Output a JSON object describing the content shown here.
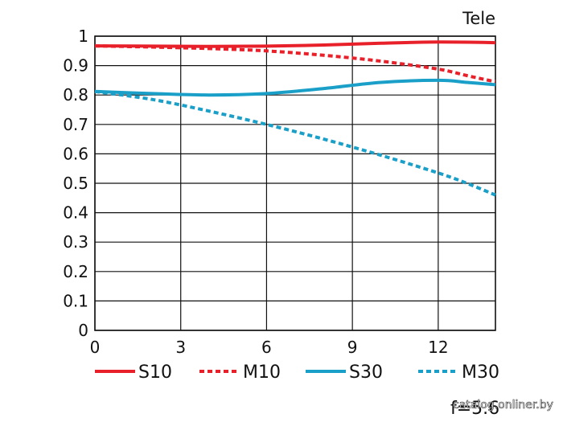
{
  "chart_data": {
    "type": "line",
    "corner_label": "Tele",
    "fnumber_label": "f=5.6",
    "watermark": "catalog.onliner.by",
    "xlim": [
      0,
      14
    ],
    "ylim": [
      0,
      1
    ],
    "x_ticks": [
      0,
      3,
      6,
      9,
      12
    ],
    "y_ticks": [
      0,
      0.1,
      0.2,
      0.3,
      0.4,
      0.5,
      0.6,
      0.7,
      0.8,
      0.9,
      1
    ],
    "y_tick_labels": [
      "0",
      "0.1",
      "0.2",
      "0.3",
      "0.4",
      "0.5",
      "0.6",
      "0.7",
      "0.8",
      "0.9",
      "1"
    ],
    "grid": true,
    "legend_position": "bottom",
    "series": [
      {
        "name": "S10",
        "color": "#e8202a",
        "style": "solid",
        "x": [
          0,
          2,
          4,
          6,
          8,
          10,
          12,
          14
        ],
        "y": [
          0.967,
          0.966,
          0.965,
          0.966,
          0.97,
          0.976,
          0.98,
          0.978
        ]
      },
      {
        "name": "M10",
        "color": "#e8202a",
        "style": "dashed",
        "x": [
          0,
          2,
          4,
          6,
          8,
          10,
          12,
          13,
          14
        ],
        "y": [
          0.967,
          0.963,
          0.958,
          0.95,
          0.935,
          0.915,
          0.888,
          0.866,
          0.845
        ]
      },
      {
        "name": "S30",
        "color": "#1aa0c8",
        "style": "solid",
        "x": [
          0,
          2,
          4,
          6,
          8,
          10,
          12,
          13,
          14
        ],
        "y": [
          0.812,
          0.805,
          0.8,
          0.805,
          0.822,
          0.843,
          0.85,
          0.843,
          0.835
        ]
      },
      {
        "name": "M30",
        "color": "#1aa0c8",
        "style": "dashed",
        "x": [
          0,
          2,
          4,
          6,
          8,
          10,
          12,
          13,
          14
        ],
        "y": [
          0.812,
          0.785,
          0.745,
          0.7,
          0.65,
          0.595,
          0.535,
          0.5,
          0.46
        ]
      }
    ]
  }
}
